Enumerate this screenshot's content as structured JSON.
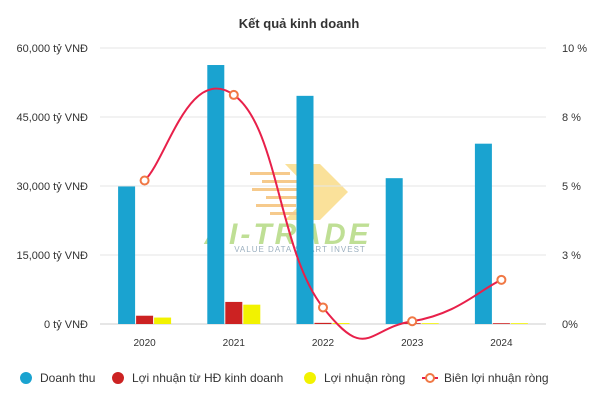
{
  "chart_data": {
    "type": "bar",
    "title": "Kết quả kinh doanh",
    "categories": [
      "2020",
      "2021",
      "2022",
      "2023",
      "2024"
    ],
    "y_left": {
      "ticks": [
        "0 tỷ VNĐ",
        "15,000 tỷ VNĐ",
        "30,000 tỷ VNĐ",
        "45,000 tỷ VNĐ",
        "60,000 tỷ VNĐ"
      ],
      "range": [
        0,
        60000
      ]
    },
    "y_right": {
      "ticks": [
        "0%",
        "3 %",
        "5 %",
        "8 %",
        "10 %"
      ],
      "range": [
        0,
        10
      ]
    },
    "series": [
      {
        "name": "Doanh thu",
        "type": "bar",
        "color": "#1aa3d0",
        "values": [
          29900,
          56300,
          49600,
          31700,
          39200
        ]
      },
      {
        "name": "Lợi nhuận từ HĐ kinh doanh",
        "type": "bar",
        "color": "#cc2222",
        "values": [
          1800,
          4800,
          250,
          60,
          120
        ]
      },
      {
        "name": "Lợi nhuận ròng",
        "type": "bar",
        "color": "#f2f200",
        "values": [
          1400,
          4200,
          200,
          40,
          90
        ]
      },
      {
        "name": "Biên lợi nhuận ròng",
        "type": "line",
        "axis": "right",
        "color": "#e8204a",
        "marker_color": "#f07845",
        "values": [
          5.2,
          8.3,
          0.6,
          0.1,
          1.6
        ]
      }
    ],
    "grid": true,
    "legend_position": "bottom",
    "watermark": "AI-TRADE VALUE DATA SMART INVEST"
  }
}
